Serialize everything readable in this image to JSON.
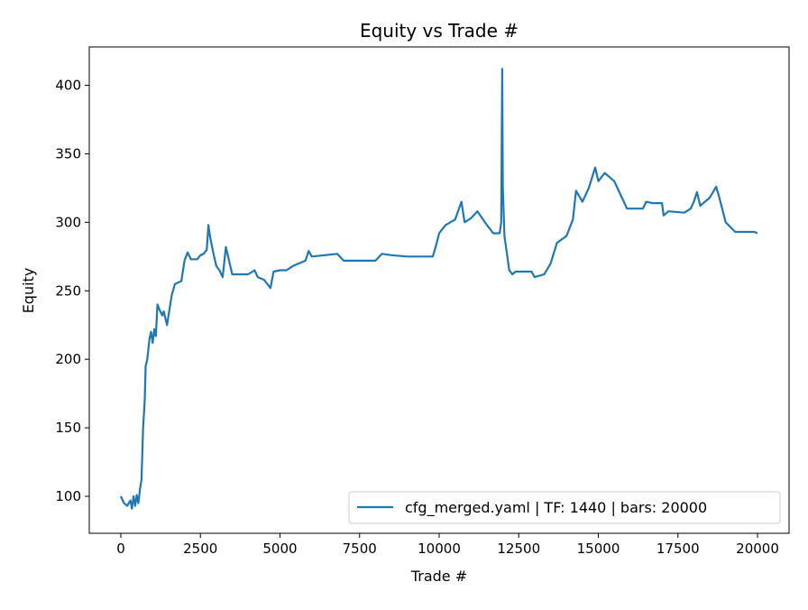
{
  "chart_data": {
    "type": "line",
    "title": "Equity vs Trade #",
    "xlabel": "Trade #",
    "ylabel": "Equity",
    "xlim": [
      -991,
      20991
    ],
    "ylim": [
      73,
      428
    ],
    "xticks": [
      0,
      2500,
      5000,
      7500,
      10000,
      12500,
      15000,
      17500,
      20000
    ],
    "yticks": [
      100,
      150,
      200,
      250,
      300,
      350,
      400
    ],
    "grid": false,
    "legend_placement": "lower right",
    "series": [
      {
        "name": "cfg_merged.yaml | TF: 1440 | bars: 20000",
        "color": "#1f77b4",
        "x": [
          0,
          100,
          200,
          300,
          350,
          400,
          450,
          500,
          550,
          600,
          650,
          700,
          750,
          780,
          830,
          900,
          950,
          1000,
          1050,
          1100,
          1150,
          1200,
          1300,
          1350,
          1450,
          1500,
          1600,
          1700,
          1800,
          1900,
          2000,
          2100,
          2200,
          2400,
          2500,
          2600,
          2700,
          2750,
          2800,
          2900,
          3000,
          3100,
          3200,
          3300,
          3400,
          3500,
          4000,
          4200,
          4300,
          4500,
          4700,
          4800,
          5000,
          5200,
          5400,
          5800,
          5900,
          6000,
          6800,
          7000,
          8000,
          8200,
          8500,
          9000,
          9800,
          9900,
          10000,
          10100,
          10200,
          10500,
          10700,
          10800,
          11000,
          11200,
          11500,
          11700,
          11900,
          11950,
          11980,
          12000,
          12050,
          12200,
          12300,
          12400,
          12900,
          13000,
          13300,
          13500,
          13700,
          14000,
          14200,
          14300,
          14500,
          14700,
          14900,
          15000,
          15200,
          15500,
          15700,
          15900,
          16400,
          16500,
          16700,
          17000,
          17050,
          17200,
          17700,
          17900,
          18000,
          18100,
          18200,
          18500,
          18700,
          18800,
          19000,
          19300,
          19900,
          20000
        ],
        "y": [
          100,
          95,
          93,
          97,
          91,
          100,
          93,
          101,
          95,
          105,
          112,
          150,
          170,
          195,
          200,
          215,
          220,
          212,
          222,
          217,
          240,
          237,
          232,
          235,
          225,
          232,
          247,
          255,
          256,
          257,
          272,
          278,
          273,
          273,
          276,
          277,
          280,
          298,
          290,
          278,
          268,
          265,
          260,
          282,
          272,
          262,
          262,
          265,
          260,
          258,
          252,
          264,
          265,
          265,
          268,
          272,
          279,
          275,
          277,
          272,
          272,
          277,
          276,
          275,
          275,
          283,
          292,
          295,
          298,
          302,
          315,
          300,
          303,
          308,
          298,
          292,
          292,
          300,
          412,
          325,
          290,
          265,
          262,
          264,
          264,
          260,
          262,
          270,
          285,
          290,
          302,
          323,
          315,
          325,
          340,
          330,
          336,
          330,
          320,
          310,
          310,
          315,
          314,
          314,
          305,
          308,
          307,
          310,
          315,
          322,
          312,
          318,
          326,
          318,
          300,
          293,
          293,
          292
        ]
      }
    ]
  }
}
